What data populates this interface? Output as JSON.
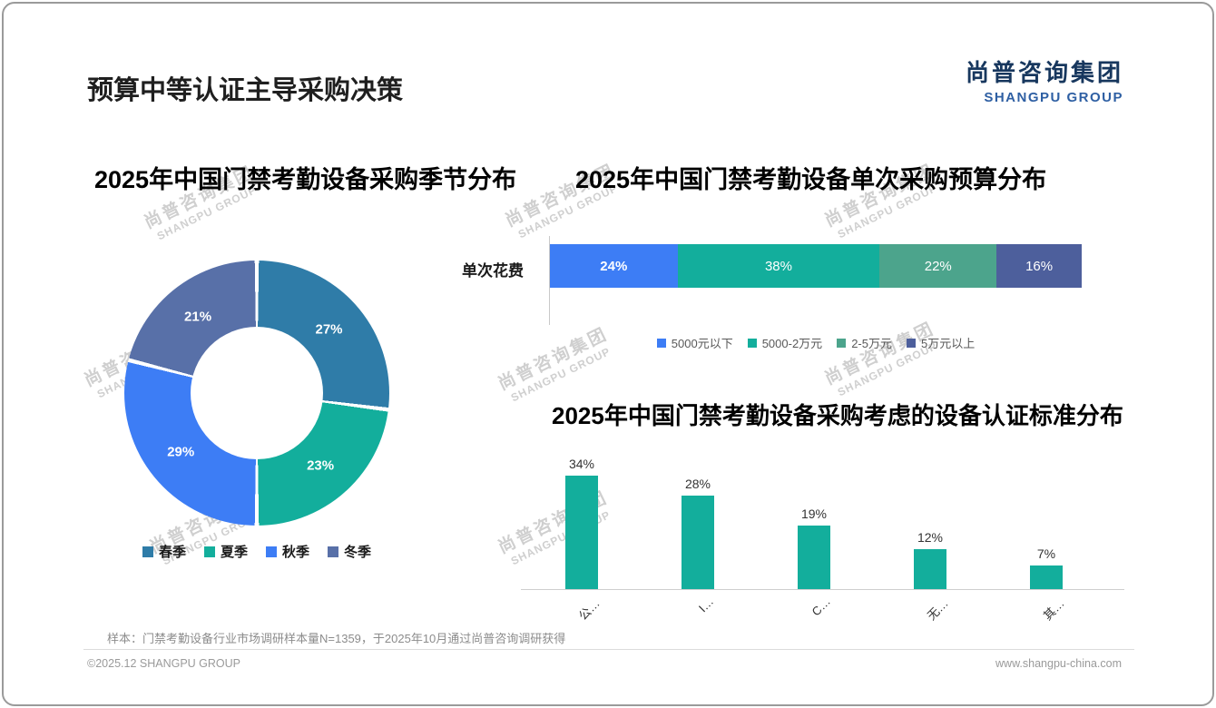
{
  "page": {
    "title": "预算中等认证主导采购决策",
    "logo": {
      "cn": "尚普咨询集团",
      "en": "SHANGPU GROUP"
    },
    "watermark": {
      "cn": "尚普咨询集团",
      "en": "SHANGPU GROUP"
    },
    "note": "样本：门禁考勤设备行业市场调研样本量N=1359，于2025年10月通过尚普咨询调研获得",
    "footer": {
      "left": "©2025.12 SHANGPU GROUP",
      "right": "www.shangpu-china.com"
    }
  },
  "chart_data": [
    {
      "type": "pie",
      "subtype": "donut",
      "title": "2025年中国门禁考勤设备采购季节分布",
      "categories": [
        "春季",
        "夏季",
        "秋季",
        "冬季"
      ],
      "values": [
        27,
        23,
        29,
        21
      ],
      "labels": [
        "27%",
        "23%",
        "29%",
        "21%"
      ],
      "colors": [
        "#2f7ca8",
        "#13ae9c",
        "#3d7df5",
        "#5870a8"
      ],
      "legend_position": "bottom"
    },
    {
      "type": "bar",
      "subtype": "horizontal-stacked",
      "title": "2025年中国门禁考勤设备单次采购预算分布",
      "row_label": "单次花费",
      "categories": [
        "5000元以下",
        "5000-2万元",
        "2-5万元",
        "5万元以上"
      ],
      "values": [
        24,
        38,
        22,
        16
      ],
      "labels": [
        "24%",
        "38%",
        "22%",
        "16%"
      ],
      "colors": [
        "#3d7df5",
        "#13ae9c",
        "#4ca48c",
        "#4d5f9c"
      ],
      "legend_position": "bottom"
    },
    {
      "type": "bar",
      "title": "2025年中国门禁考勤设备采购考虑的设备认证标准分布",
      "categories": [
        "公…",
        "I…",
        "C…",
        "无…",
        "其…"
      ],
      "values": [
        34,
        28,
        19,
        12,
        7
      ],
      "labels": [
        "34%",
        "28%",
        "19%",
        "12%",
        "7%"
      ],
      "bar_color": "#13ae9c",
      "ylim": [
        0,
        40
      ],
      "grid": false
    }
  ]
}
